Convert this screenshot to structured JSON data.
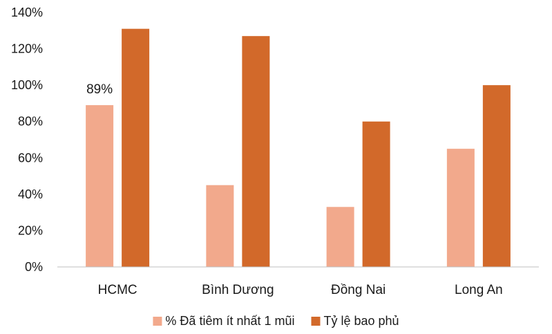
{
  "chart_data": {
    "type": "bar",
    "categories": [
      "HCMC",
      "Bình Dương",
      "Đồng Nai",
      "Long An"
    ],
    "series": [
      {
        "name": "% Đã tiêm ít nhất 1 mũi",
        "values": [
          89,
          45,
          33,
          65
        ],
        "color": "#F2A98C"
      },
      {
        "name": "Tỷ lệ bao phủ",
        "values": [
          131,
          127,
          80,
          100
        ],
        "color": "#D2692A"
      }
    ],
    "ylim": [
      0,
      140
    ],
    "yticks": [
      0,
      20,
      40,
      60,
      80,
      100,
      120,
      140
    ],
    "ytick_format": "{v}%",
    "data_labels": [
      {
        "series": 0,
        "category": 0,
        "text": "89%"
      }
    ],
    "grid": false,
    "legend": "bottom",
    "axis_color": "#bfbfbf"
  }
}
